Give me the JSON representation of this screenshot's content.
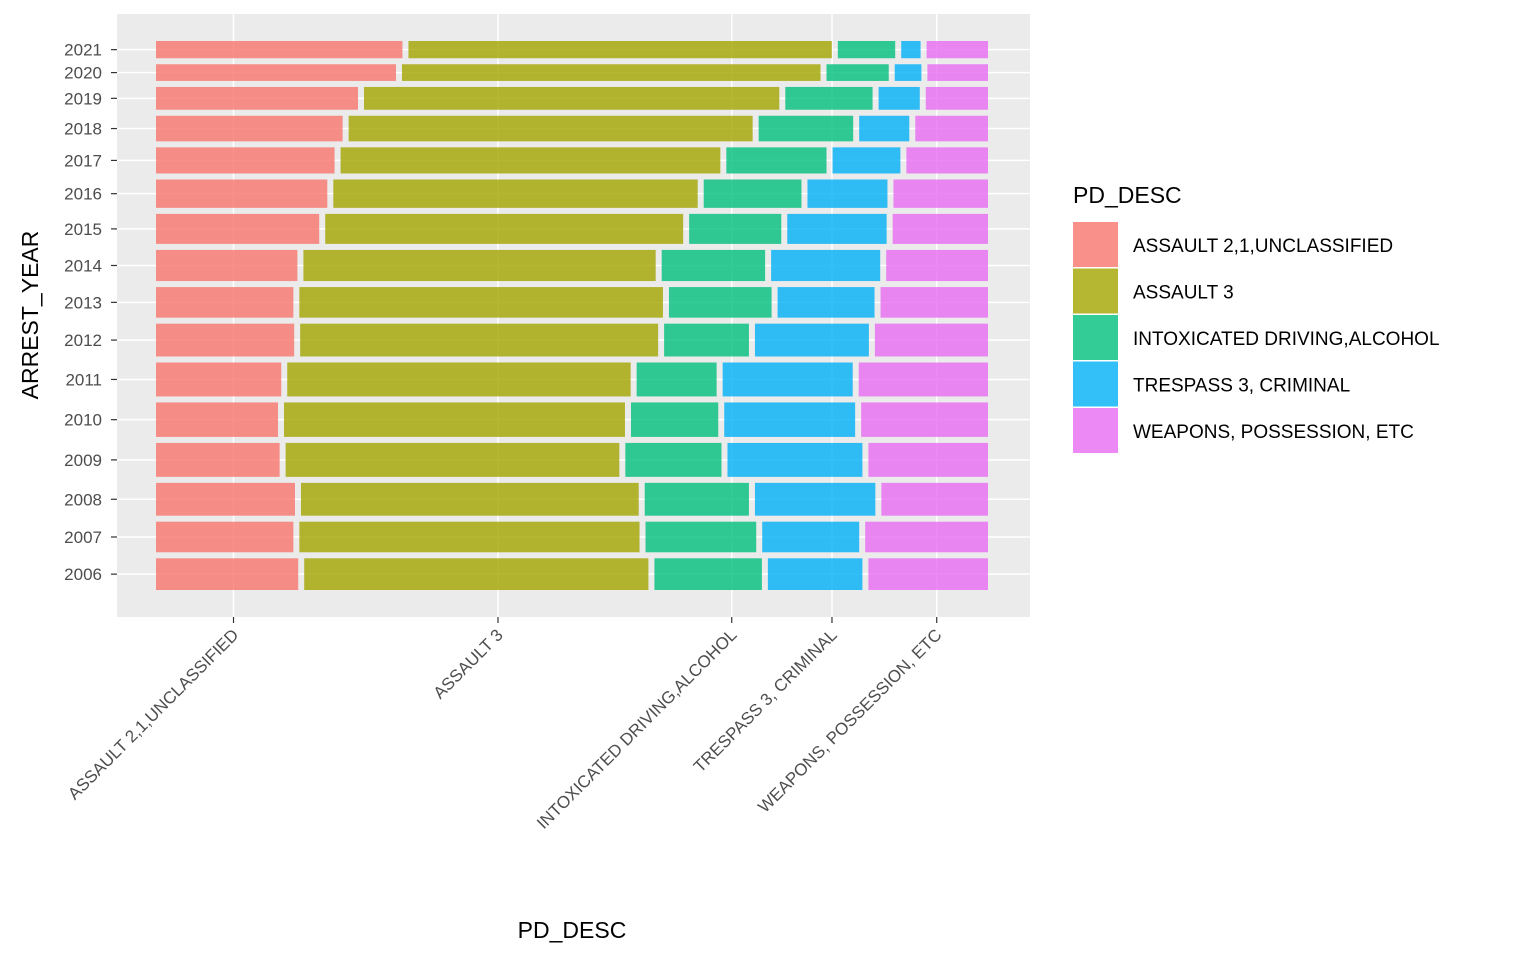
{
  "chart_data": {
    "type": "mosaic",
    "xlabel": "PD_DESC",
    "ylabel": "ARREST_YEAR",
    "legend_title": "PD_DESC",
    "legend_position": "right",
    "grid": true,
    "categories": [
      "ASSAULT 2,1,UNCLASSIFIED",
      "ASSAULT 3",
      "INTOXICATED DRIVING,ALCOHOL",
      "TRESPASS 3, CRIMINAL",
      "WEAPONS, POSSESSION, ETC"
    ],
    "colors": [
      "#F8766D",
      "#A3A500",
      "#00BF7D",
      "#00B0F6",
      "#E76BF3"
    ],
    "years": [
      "2006",
      "2007",
      "2008",
      "2009",
      "2010",
      "2011",
      "2012",
      "2013",
      "2014",
      "2015",
      "2016",
      "2017",
      "2018",
      "2019",
      "2020",
      "2021"
    ],
    "year_share": [
      0.057,
      0.055,
      0.059,
      0.061,
      0.062,
      0.061,
      0.059,
      0.055,
      0.056,
      0.054,
      0.051,
      0.047,
      0.046,
      0.041,
      0.03,
      0.031
    ],
    "proportions": [
      [
        0.176,
        0.426,
        0.133,
        0.117,
        0.148
      ],
      [
        0.17,
        0.421,
        0.137,
        0.12,
        0.152
      ],
      [
        0.172,
        0.418,
        0.129,
        0.149,
        0.132
      ],
      [
        0.153,
        0.413,
        0.119,
        0.167,
        0.148
      ],
      [
        0.151,
        0.422,
        0.108,
        0.162,
        0.157
      ],
      [
        0.155,
        0.425,
        0.099,
        0.161,
        0.16
      ],
      [
        0.171,
        0.443,
        0.105,
        0.141,
        0.14
      ],
      [
        0.17,
        0.45,
        0.127,
        0.12,
        0.133
      ],
      [
        0.175,
        0.436,
        0.128,
        0.135,
        0.126
      ],
      [
        0.202,
        0.443,
        0.114,
        0.123,
        0.118
      ],
      [
        0.212,
        0.451,
        0.121,
        0.099,
        0.117
      ],
      [
        0.221,
        0.47,
        0.124,
        0.084,
        0.101
      ],
      [
        0.231,
        0.5,
        0.117,
        0.062,
        0.09
      ],
      [
        0.25,
        0.514,
        0.108,
        0.051,
        0.077
      ],
      [
        0.297,
        0.518,
        0.077,
        0.033,
        0.075
      ],
      [
        0.305,
        0.524,
        0.071,
        0.024,
        0.076
      ]
    ]
  }
}
